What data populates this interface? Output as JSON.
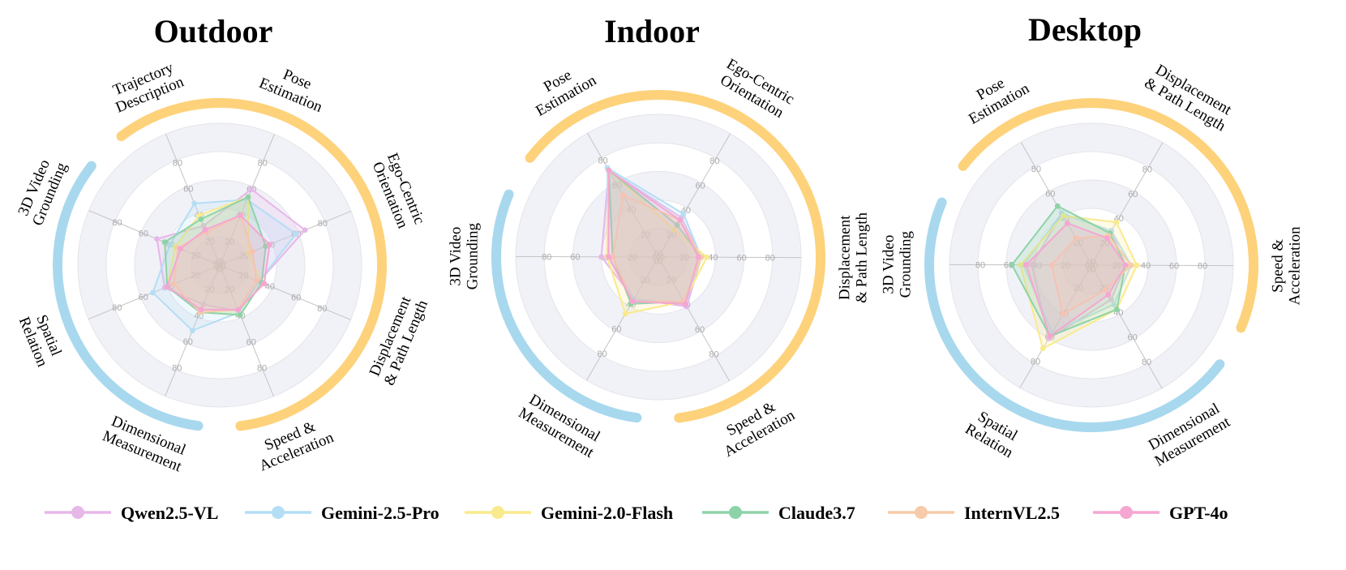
{
  "chart_data": {
    "type": "radar",
    "range": [
      0,
      100
    ],
    "rings": [
      20,
      40,
      60,
      80
    ],
    "tick_labels": [
      "0",
      "20",
      "40",
      "60",
      "80"
    ],
    "legend_placement": "bottom",
    "series_styles": [
      {
        "name": "Qwen2.5-VL",
        "color": "#e6b8e8"
      },
      {
        "name": "Gemini-2.5-Pro",
        "color": "#b4def5"
      },
      {
        "name": "Gemini-2.0-Flash",
        "color": "#f9ea8c"
      },
      {
        "name": "Claude3.7",
        "color": "#8ed3a8"
      },
      {
        "name": "InternVL2.5",
        "color": "#f7cba9"
      },
      {
        "name": "GPT-4o",
        "color": "#f5a6d2"
      }
    ],
    "group_colors": {
      "static": "#a8d8ee",
      "dynamic": "#fdd27b"
    },
    "charts": [
      {
        "title": "Outdoor",
        "axes": [
          {
            "label": [
              "Trajectory",
              "Description"
            ],
            "group": "dynamic"
          },
          {
            "label": [
              "Pose",
              "Estimation"
            ],
            "group": "dynamic"
          },
          {
            "label": [
              "Ego-Centric",
              "Orientation"
            ],
            "group": "dynamic"
          },
          {
            "label": [
              "Displacement",
              "& Path Length"
            ],
            "group": "dynamic"
          },
          {
            "label": [
              "Speed &",
              "Acceleration"
            ],
            "group": "dynamic"
          },
          {
            "label": [
              "Dimensional",
              "Measurement"
            ],
            "group": "static"
          },
          {
            "label": [
              "Spatial",
              "Relation"
            ],
            "group": "static"
          },
          {
            "label": [
              "3D Video",
              "Grounding"
            ],
            "group": "static"
          }
        ],
        "series": [
          {
            "name": "Qwen2.5-VL",
            "values": [
              30,
              58,
              65,
              30,
              35,
              30,
              42,
              48
            ]
          },
          {
            "name": "Gemini-2.5-Pro",
            "values": [
              47,
              50,
              58,
              30,
              36,
              50,
              51,
              38
            ]
          },
          {
            "name": "Gemini-2.0-Flash",
            "values": [
              38,
              52,
              22,
              32,
              38,
              36,
              40,
              34
            ]
          },
          {
            "name": "Claude3.7",
            "values": [
              35,
              52,
              35,
              32,
              38,
              36,
              40,
              42
            ]
          },
          {
            "name": "InternVL2.5",
            "values": [
              25,
              38,
              25,
              28,
              34,
              36,
              35,
              32
            ]
          },
          {
            "name": "GPT-4o",
            "values": [
              27,
              38,
              38,
              34,
              34,
              34,
              40,
              30
            ]
          }
        ]
      },
      {
        "title": "Indoor",
        "axes": [
          {
            "label": [
              "Pose",
              "Estimation"
            ],
            "group": "dynamic"
          },
          {
            "label": [
              "Ego-Centric",
              "Orientation"
            ],
            "group": "dynamic"
          },
          {
            "label": [
              "Displacement",
              "& Path Length"
            ],
            "group": "dynamic"
          },
          {
            "label": [
              "Speed &",
              "Acceleration"
            ],
            "group": "dynamic"
          },
          {
            "label": [
              "Dimensional",
              "Measurement"
            ],
            "group": "static"
          },
          {
            "label": [
              "3D Video",
              "Grounding"
            ],
            "group": "static"
          }
        ],
        "series": [
          {
            "name": "Qwen2.5-VL",
            "values": [
              70,
              32,
              30,
              40,
              34,
              40
            ]
          },
          {
            "name": "Gemini-2.5-Pro",
            "values": [
              72,
              35,
              30,
              38,
              34,
              35
            ]
          },
          {
            "name": "Gemini-2.0-Flash",
            "values": [
              70,
              22,
              34,
              36,
              46,
              36
            ]
          },
          {
            "name": "Claude3.7",
            "values": [
              70,
              26,
              30,
              36,
              38,
              32
            ]
          },
          {
            "name": "InternVL2.5",
            "values": [
              50,
              30,
              30,
              36,
              36,
              32
            ]
          },
          {
            "name": "GPT-4o",
            "values": [
              70,
              30,
              28,
              38,
              36,
              35
            ]
          }
        ]
      },
      {
        "title": "Desktop",
        "axes": [
          {
            "label": [
              "Pose",
              "Estimation"
            ],
            "group": "dynamic"
          },
          {
            "label": [
              "Displacement",
              "& Path Length"
            ],
            "group": "dynamic"
          },
          {
            "label": [
              "Speed &",
              "Acceleration"
            ],
            "group": "dynamic"
          },
          {
            "label": [
              "Dimensional",
              "Measurement"
            ],
            "group": "static"
          },
          {
            "label": [
              "Spatial",
              "Relation"
            ],
            "group": "static"
          },
          {
            "label": [
              "3D Video",
              "Grounding"
            ],
            "group": "static"
          }
        ],
        "series": [
          {
            "name": "Qwen2.5-VL",
            "values": [
              42,
              28,
              24,
              28,
              60,
              42
            ]
          },
          {
            "name": "Gemini-2.5-Pro",
            "values": [
              42,
              28,
              28,
              32,
              55,
              48
            ]
          },
          {
            "name": "Gemini-2.0-Flash",
            "values": [
              40,
              35,
              32,
              36,
              68,
              50
            ]
          },
          {
            "name": "Claude3.7",
            "values": [
              48,
              26,
              24,
              36,
              58,
              56
            ]
          },
          {
            "name": "InternVL2.5",
            "values": [
              22,
              24,
              28,
              20,
              40,
              28
            ]
          },
          {
            "name": "GPT-4o",
            "values": [
              34,
              22,
              24,
              24,
              58,
              46
            ]
          }
        ]
      }
    ]
  }
}
